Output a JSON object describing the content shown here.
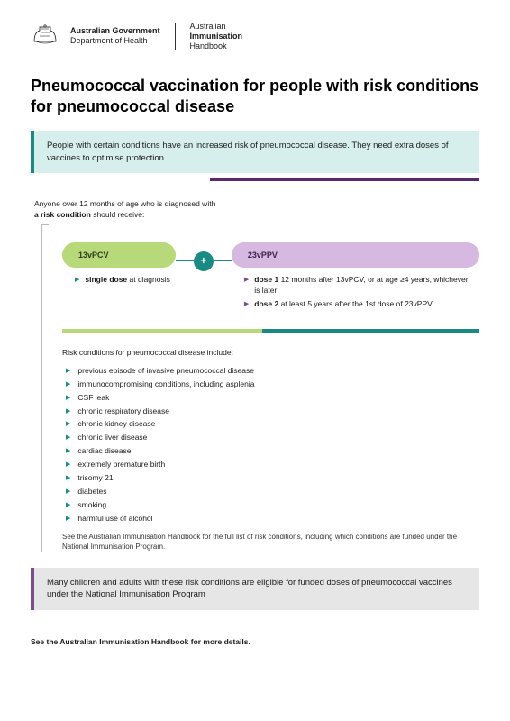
{
  "header": {
    "gov_line1": "Australian Government",
    "gov_line2": "Department of Health",
    "handbook_line1": "Australian",
    "handbook_line2": "Immunisation",
    "handbook_line3": "Handbook"
  },
  "title": "Pneumococcal vaccination for people with risk conditions for pneumococcal disease",
  "callout_teal": "People with certain conditions have an increased risk of pneumococcal disease. They need extra doses of vaccines to optimise protection.",
  "intro_pre": "Anyone over 12 months of age who is diagnosed with",
  "intro_bold": "a risk condition",
  "intro_post": " should receive:",
  "vaccine1": {
    "name": "13vPCV",
    "pill_bg": "#b7d97a",
    "pill_fg": "#2b3a1a",
    "detail_bold": "single dose",
    "detail_rest": " at diagnosis"
  },
  "plus": "+",
  "vaccine2": {
    "name": "23vPPV",
    "pill_bg": "#d6b8e0",
    "pill_fg": "#3a2348",
    "dose1_label": "dose 1",
    "dose1_text": " 12 months after 13vPCV, or at age ≥4 years, whichever is later",
    "dose2_label": "dose 2",
    "dose2_text": " at least 5 years after the 1st dose of 23vPPV"
  },
  "risk_intro": "Risk conditions for pneumococcal disease include:",
  "risk_conditions": [
    "previous episode of invasive pneumococcal disease",
    "immunocompromising conditions, including asplenia",
    "CSF leak",
    "chronic respiratory disease",
    "chronic kidney disease",
    "chronic liver disease",
    "cardiac disease",
    "extremely premature birth",
    "trisomy 21",
    "diabetes",
    "smoking",
    "harmful use of alcohol"
  ],
  "risk_note": "See the Australian Immunisation Handbook for the full list of risk conditions, including which conditions are funded under the National Immunisation Program.",
  "callout_grey": "Many children and adults with these risk conditions are eligible for funded doses of pneumococcal vaccines under the National Immunisation Program",
  "footer": "See the Australian Immunisation Handbook for more details.",
  "colors": {
    "teal": "#1a8a82",
    "teal_light": "#d6efec",
    "green": "#b7d97a",
    "purple": "#7a4c90",
    "purple_light": "#d6b8e0",
    "purple_dark": "#5a2a6e",
    "grey": "#e6e6e6"
  }
}
